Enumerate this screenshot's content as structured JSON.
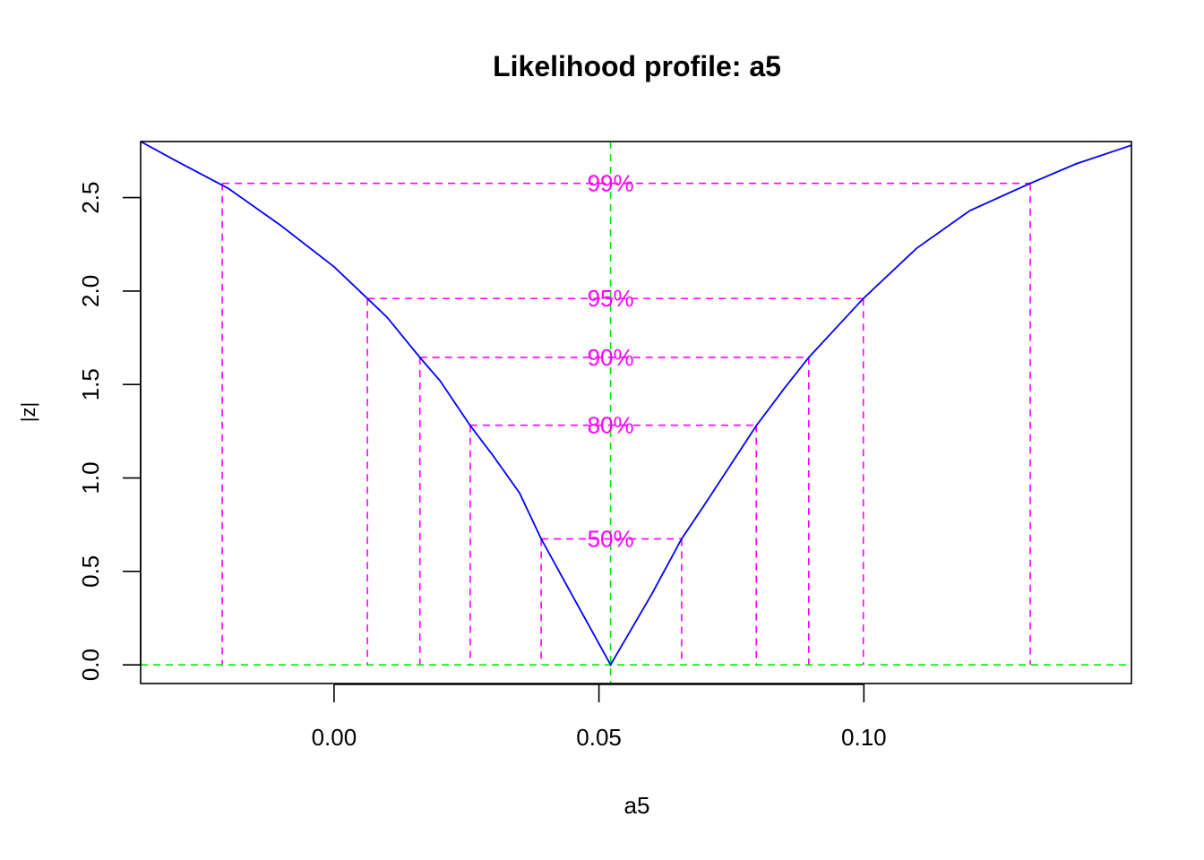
{
  "chart_data": {
    "type": "line",
    "title": "Likelihood profile: a5",
    "xlabel": "a5",
    "ylabel": "|z|",
    "xlim": [
      -0.0365,
      0.1505
    ],
    "ylim": [
      -0.1,
      2.8
    ],
    "x_ticks": [
      0.0,
      0.05,
      0.1
    ],
    "x_tick_labels": [
      "0.00",
      "0.05",
      "0.10"
    ],
    "y_ticks": [
      0.0,
      0.5,
      1.0,
      1.5,
      2.0,
      2.5
    ],
    "y_tick_labels": [
      "0.0",
      "0.5",
      "1.0",
      "1.5",
      "2.0",
      "2.5"
    ],
    "mle": 0.0522,
    "curve": {
      "color": "#0000ff",
      "x": [
        -0.0365,
        -0.03,
        -0.02,
        -0.01,
        0.0,
        0.0063,
        0.01,
        0.0162,
        0.02,
        0.0257,
        0.03,
        0.035,
        0.0391,
        0.045,
        0.0522,
        0.06,
        0.0656,
        0.07,
        0.0797,
        0.085,
        0.0896,
        0.0999,
        0.11,
        0.12,
        0.1314,
        0.14,
        0.1505
      ],
      "y": [
        2.8,
        2.7,
        2.55,
        2.35,
        2.13,
        1.96,
        1.86,
        1.645,
        1.52,
        1.28,
        1.12,
        0.92,
        0.674,
        0.37,
        0.0,
        0.38,
        0.674,
        0.86,
        1.28,
        1.48,
        1.645,
        1.96,
        2.23,
        2.43,
        2.576,
        2.68,
        2.78
      ]
    },
    "confidence_levels": [
      {
        "label": "50%",
        "z": 0.674,
        "lower": 0.0391,
        "upper": 0.0656
      },
      {
        "label": "80%",
        "z": 1.282,
        "lower": 0.0257,
        "upper": 0.0797
      },
      {
        "label": "90%",
        "z": 1.645,
        "lower": 0.0162,
        "upper": 0.0896
      },
      {
        "label": "95%",
        "z": 1.96,
        "lower": 0.0063,
        "upper": 0.0999
      },
      {
        "label": "99%",
        "z": 2.576,
        "lower": -0.0211,
        "upper": 0.1314
      }
    ],
    "colors": {
      "curve": "#0000ff",
      "ci": "#ff00ff",
      "reference": "#00ee00",
      "axis": "#000000"
    }
  }
}
